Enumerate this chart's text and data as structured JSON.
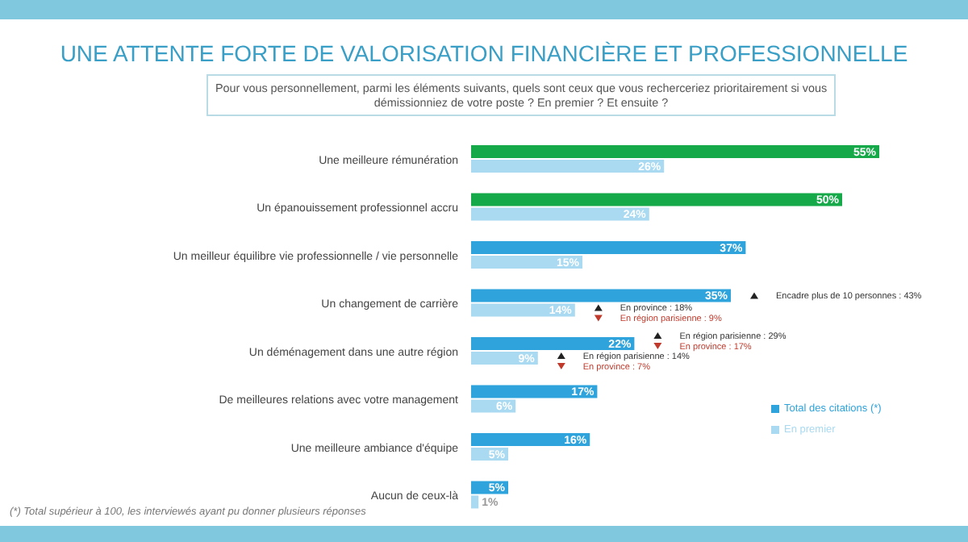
{
  "chart_data": {
    "type": "bar",
    "orientation": "horizontal",
    "title": "UNE ATTENTE FORTE DE VALORISATION FINANCIÈRE ET PROFESSIONNELLE",
    "subtitle": "Pour vous personnellement, parmi les éléments suivants, quels sont ceux que vous recherceriez prioritairement si vous démissionniez de votre poste ? En premier ? Et ensuite ?",
    "categories": [
      "Une meilleure rémunération",
      "Un épanouissement professionnel accru",
      "Un meilleur équilibre vie professionnelle / vie personnelle",
      "Un changement de carrière",
      "Un déménagement dans une autre région",
      "De meilleures relations avec votre management",
      "Une meilleure ambiance d'équipe",
      "Aucun de ceux-là"
    ],
    "series": [
      {
        "name": "Total des citations (*)",
        "color": "#2ea3dc",
        "colors": [
          "#16a94a",
          "#16a94a",
          "#2ea3dc",
          "#2ea3dc",
          "#2ea3dc",
          "#2ea3dc",
          "#2ea3dc",
          "#2ea3dc"
        ],
        "values": [
          55,
          50,
          37,
          35,
          22,
          17,
          16,
          5
        ],
        "value_labels": [
          "55%",
          "50%",
          "37%",
          "35%",
          "22%",
          "17%",
          "16%",
          "5%"
        ]
      },
      {
        "name": "En premier",
        "color": "#a9daf2",
        "values": [
          26,
          24,
          15,
          14,
          9,
          6,
          5,
          1
        ],
        "value_labels": [
          "26%",
          "24%",
          "15%",
          "14%",
          "9%",
          "6%",
          "5%",
          "1%"
        ]
      }
    ],
    "legend": "right",
    "annotations": [
      "Encadre plus de 10 personnes : 43%",
      "En province : 18%",
      "En région parisienne : 9%",
      "En région parisienne : 29%",
      "En province : 17%",
      "En région parisienne : 14%",
      "En province : 7%",
      "(*) Total supérieur à 100, les interviewés ayant pu donner plusieurs réponses"
    ]
  }
}
